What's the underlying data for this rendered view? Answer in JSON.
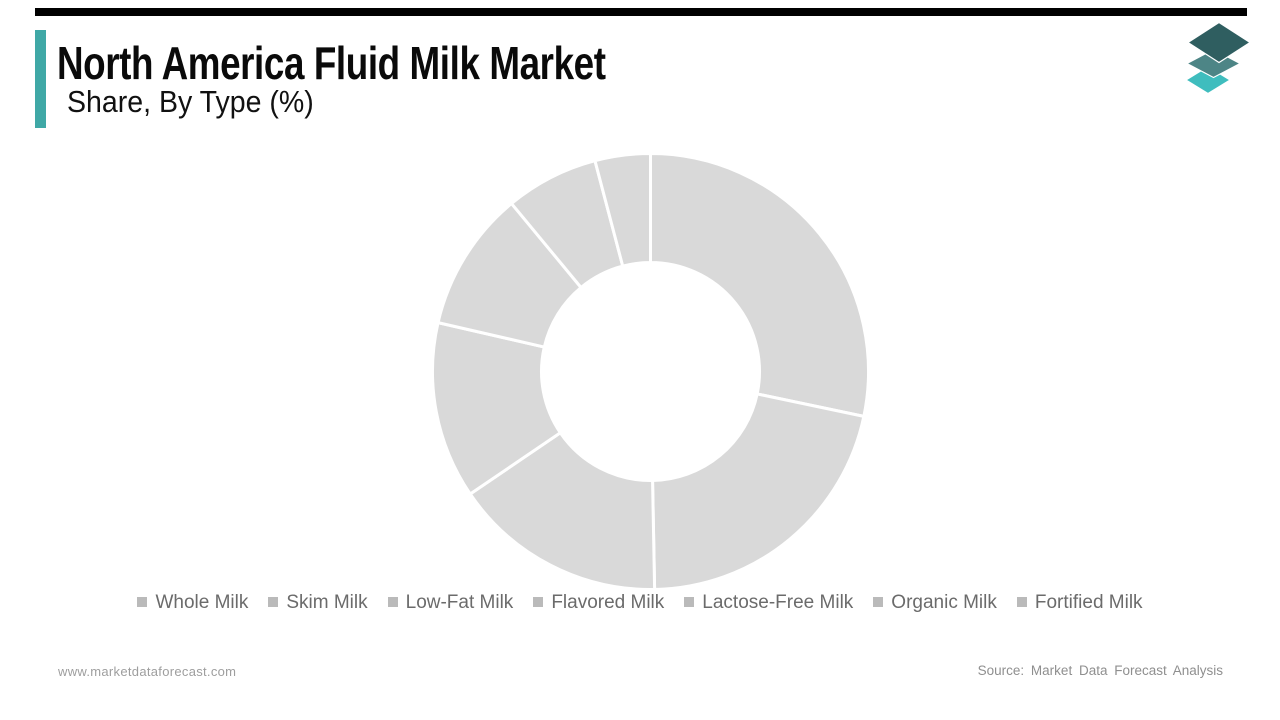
{
  "page": {
    "background_color": "#FFFFFF",
    "accent_color": "#3FA8A6",
    "top_bar_color": "#000000"
  },
  "header": {
    "title": "North America Fluid Milk Market",
    "subtitle": "Share, By Type (%)"
  },
  "logo": {
    "name": "market-data-forecast-logo",
    "layer_colors": [
      "#3FBDBE",
      "#4D8586",
      "#2F5E60"
    ]
  },
  "chart_data": {
    "type": "pie",
    "subtype": "donut",
    "title": "North America Fluid Milk Market Share, By Type (%)",
    "categories": [
      "Whole Milk",
      "Skim Milk",
      "Low-Fat Milk",
      "Flavored Milk",
      "Lactose-Free Milk",
      "Organic Milk",
      "Fortified Milk"
    ],
    "values": [
      28.3,
      21.4,
      15.8,
      13.1,
      10.4,
      6.9,
      4.1
    ],
    "unit": "%",
    "start_angle_deg": 0,
    "direction": "clockwise",
    "inner_radius_ratio": 0.5,
    "slice_color": "#D9D9D9",
    "slice_border_color": "#FFFFFF",
    "data_labels": false,
    "legend_position": "bottom"
  },
  "legend": {
    "marker_color": "#BABABA",
    "text_color": "#6B6B6B",
    "items": [
      "Whole Milk",
      "Skim Milk",
      "Low-Fat Milk",
      "Flavored Milk",
      "Lactose-Free Milk",
      "Organic Milk",
      "Fortified Milk"
    ]
  },
  "footer": {
    "website": "www.marketdataforecast.com",
    "source": "Source: Market Data Forecast Analysis"
  }
}
